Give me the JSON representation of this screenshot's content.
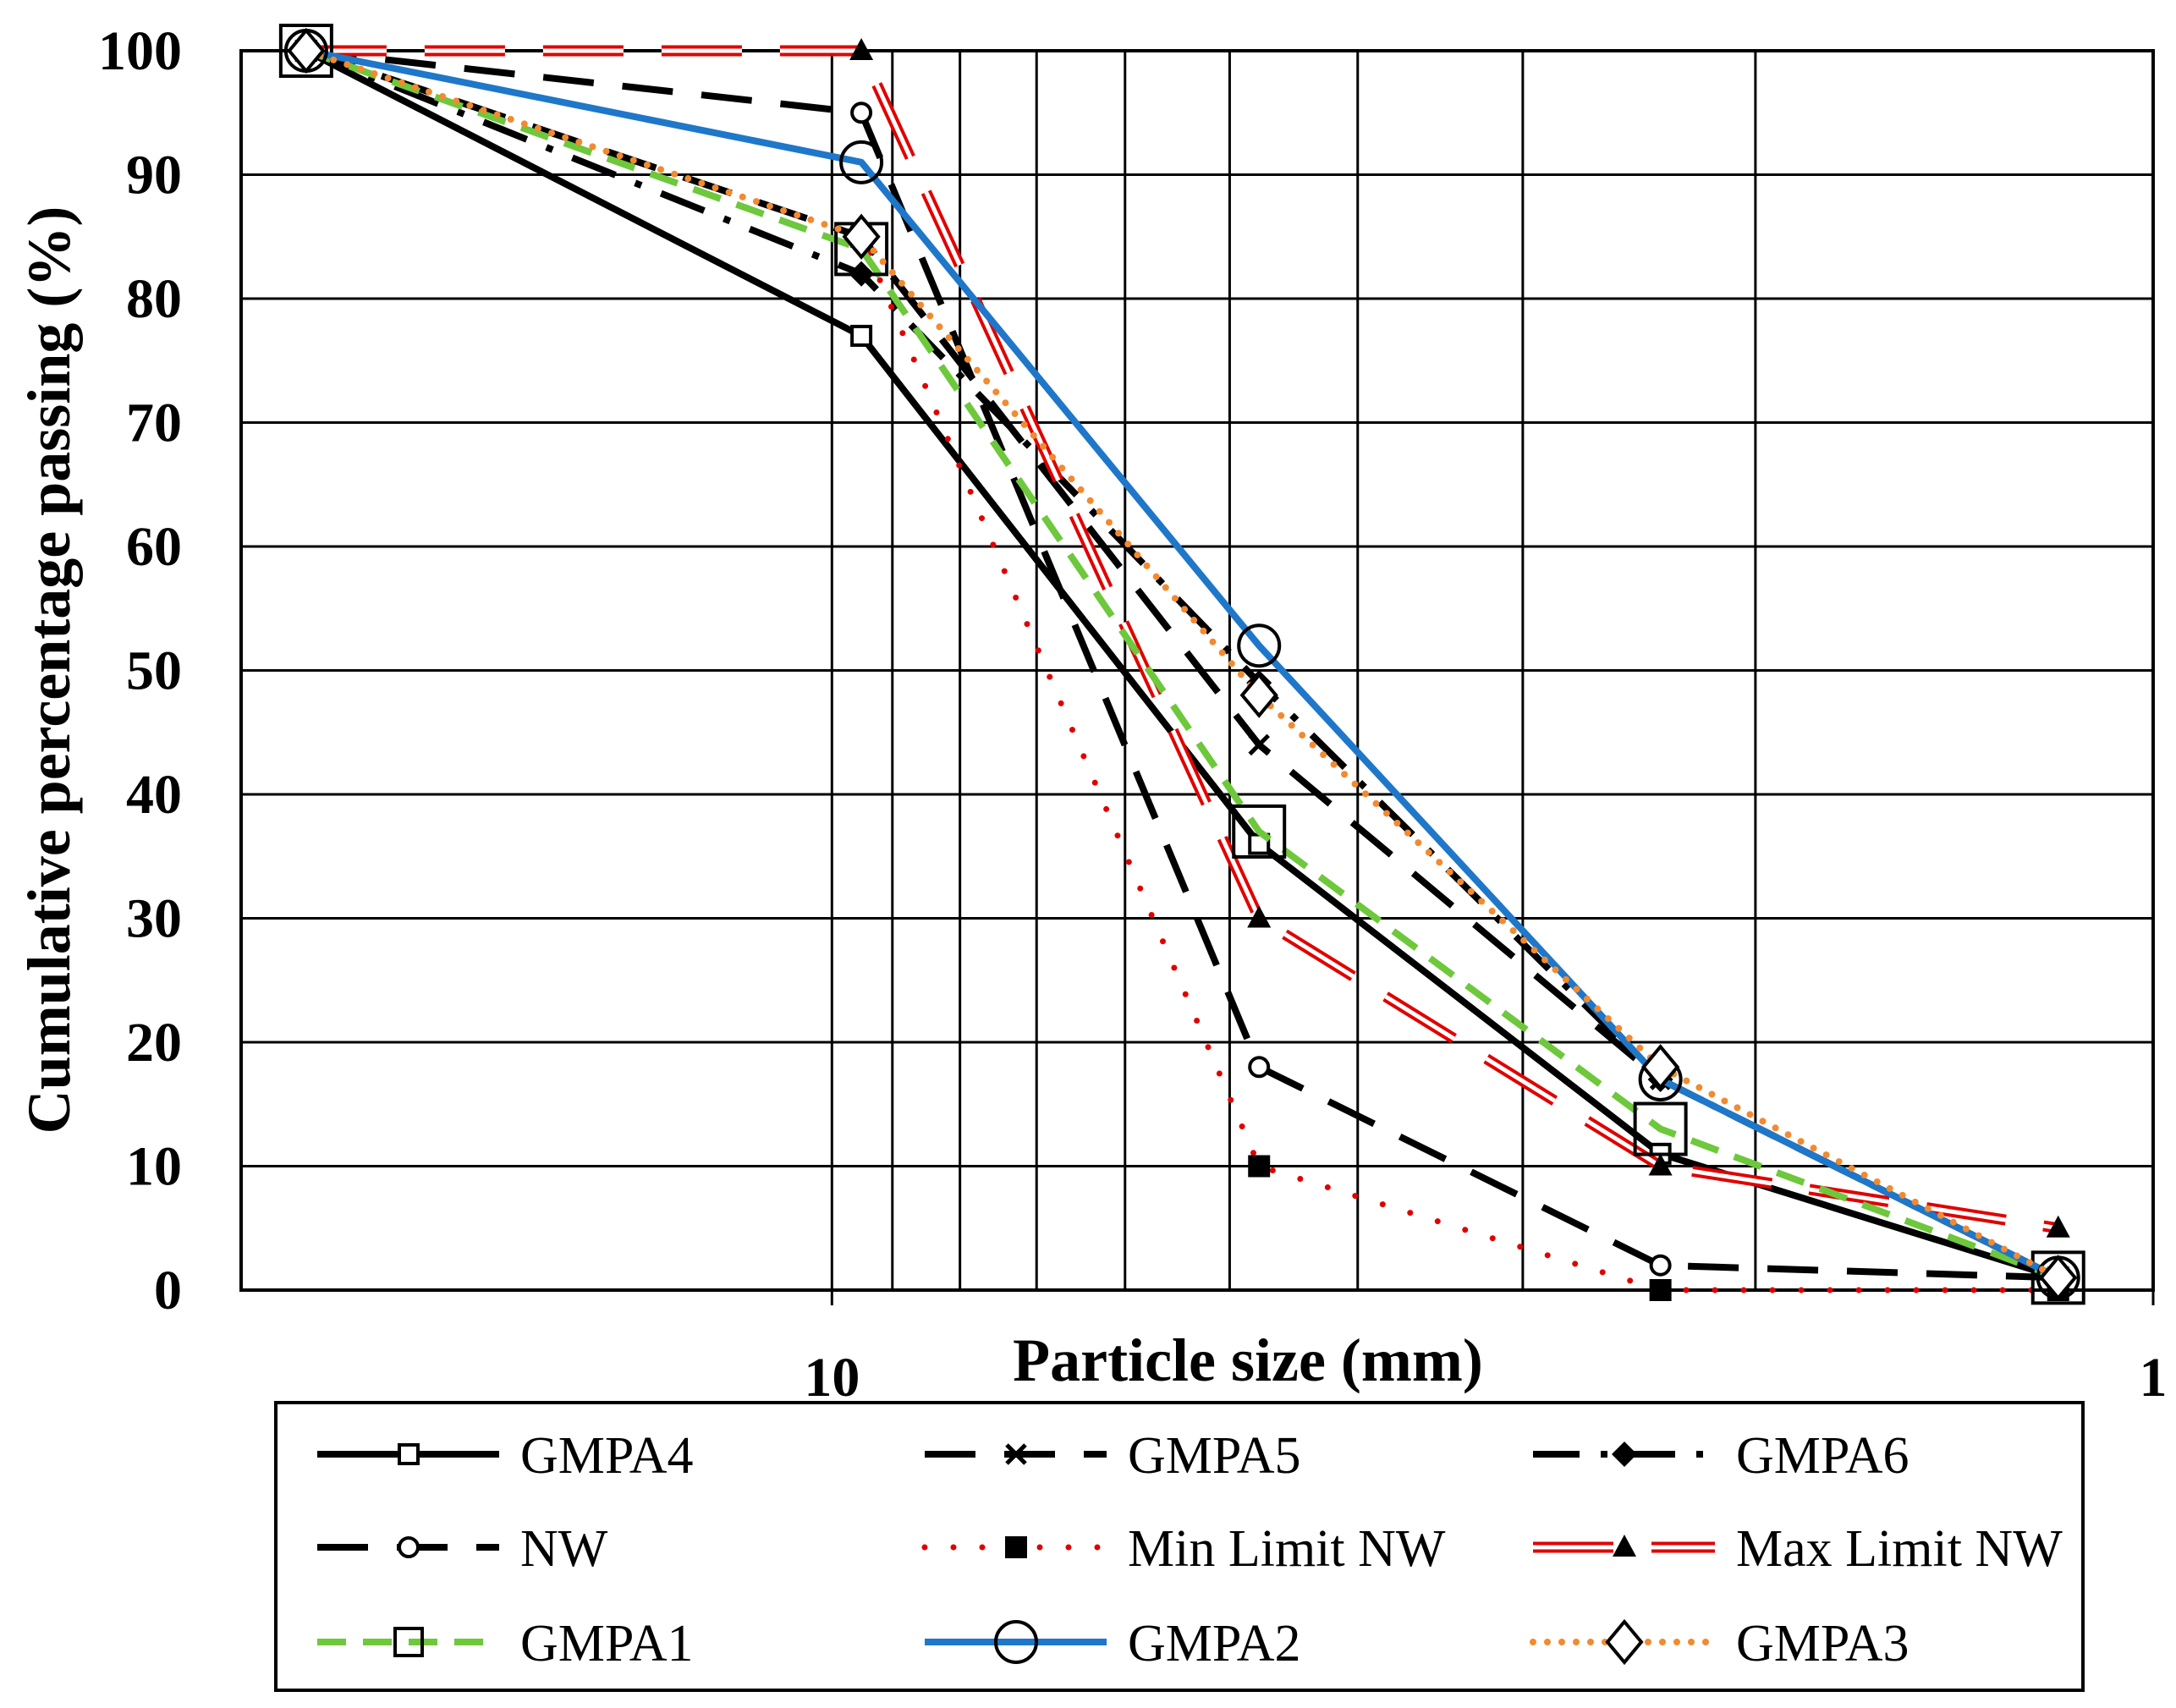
{
  "chart_data": {
    "type": "line",
    "x_scale": "log",
    "x_reversed": true,
    "xlim": [
      28,
      1
    ],
    "ylim": [
      0,
      100
    ],
    "grid": true,
    "xlabel": "Particle size (mm)",
    "ylabel": "Cumulative percentage passing (%)",
    "x_ticks": [
      10,
      1
    ],
    "x_tick_labels": [
      "10",
      "1"
    ],
    "x_minor_gridlines": [
      9,
      8,
      7,
      6,
      5,
      4,
      3,
      2
    ],
    "y_ticks": [
      0,
      10,
      20,
      30,
      40,
      50,
      60,
      70,
      80,
      90,
      100
    ],
    "y_tick_labels": [
      "0",
      "10",
      "20",
      "30",
      "40",
      "50",
      "60",
      "70",
      "80",
      "90",
      "100"
    ],
    "legend_position": "bottom",
    "x": [
      25,
      9.5,
      4.75,
      2.36,
      1.18
    ],
    "series": [
      {
        "name": "GMPA4",
        "color": "#000000",
        "dash": "solid",
        "marker": "square-small",
        "values": [
          100,
          77,
          36,
          11,
          1
        ]
      },
      {
        "name": "GMPA5",
        "color": "#000000",
        "dash": "longdash",
        "marker": "x",
        "values": [
          100,
          85,
          44,
          17,
          1
        ]
      },
      {
        "name": "GMPA6",
        "color": "#000000",
        "dash": "dashdot",
        "marker": "diamond-filled",
        "values": [
          100,
          82,
          49,
          17,
          1
        ]
      },
      {
        "name": "NW",
        "color": "#000000",
        "dash": "longdash",
        "marker": "circle-small",
        "values": [
          100,
          95,
          18,
          2,
          1
        ]
      },
      {
        "name": "Min Limit NW",
        "color": "#e00000",
        "dash": "double-dot",
        "marker": "square-filled",
        "values": [
          100,
          85,
          10,
          0,
          0
        ]
      },
      {
        "name": "Max Limit NW",
        "color": "#e00000",
        "dash": "double-dash",
        "marker": "triangle-filled",
        "values": [
          100,
          100,
          30,
          10,
          5
        ]
      },
      {
        "name": "GMPA1",
        "color": "#6dc83b",
        "dash": "dash",
        "marker": "square-large",
        "values": [
          100,
          84,
          37,
          13,
          1
        ]
      },
      {
        "name": "GMPA2",
        "color": "#1f77c9",
        "dash": "solid",
        "marker": "circle-large",
        "values": [
          100,
          91,
          52,
          17,
          1
        ]
      },
      {
        "name": "GMPA3",
        "color": "#f28a30",
        "dash": "dot",
        "marker": "diamond-open",
        "values": [
          100,
          85,
          48,
          18,
          1
        ]
      }
    ]
  }
}
